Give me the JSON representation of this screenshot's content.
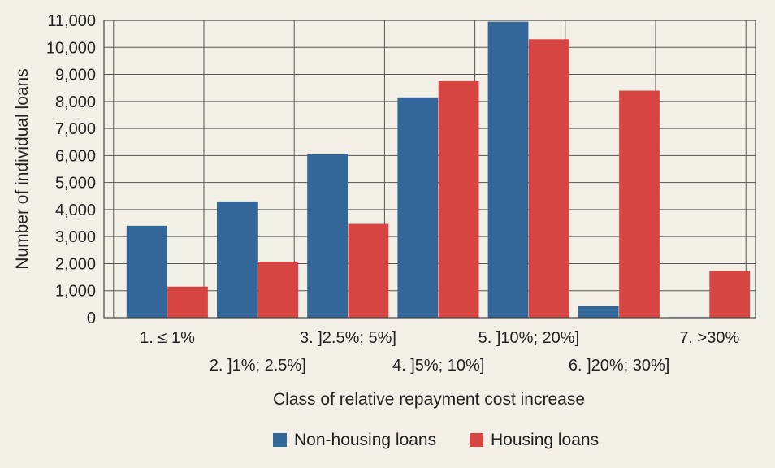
{
  "chart_data": {
    "type": "bar",
    "title": "",
    "xlabel": "Class of relative repayment cost increase",
    "ylabel": "Number of individual loans",
    "ylim": [
      0,
      11000
    ],
    "yticks": [
      "0",
      "1,000",
      "2,000",
      "3,000",
      "4,000",
      "5,000",
      "6,000",
      "7,000",
      "8,000",
      "9,000",
      "10,000",
      "11,000"
    ],
    "categories": [
      "1. ≤ 1%",
      "2. ]1%; 2.5%]",
      "3. ]2.5%; 5%]",
      "4. ]5%; 10%]",
      "5. ]10%; 20%]",
      "6. ]20%; 30%]",
      "7. >30%"
    ],
    "series": [
      {
        "name": "Non-housing loans",
        "color": "#336699",
        "values": [
          3400,
          4300,
          6050,
          8150,
          10950,
          430,
          20
        ]
      },
      {
        "name": "Housing loans",
        "color": "#d64541",
        "values": [
          1150,
          2070,
          3470,
          8750,
          10300,
          8400,
          1730
        ]
      }
    ],
    "grid": true,
    "legend_position": "bottom-center"
  }
}
